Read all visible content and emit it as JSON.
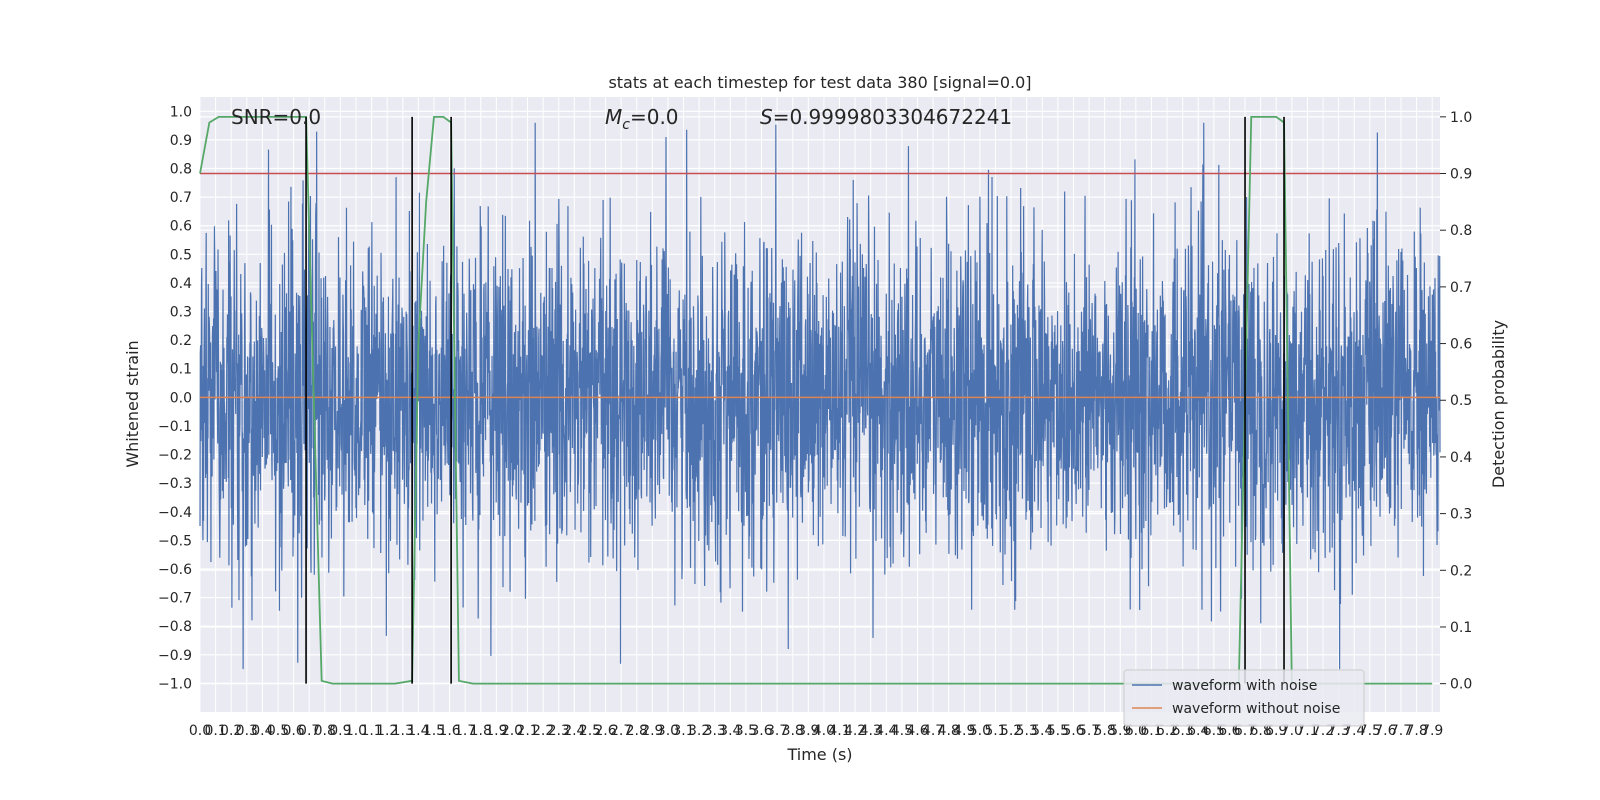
{
  "chart_data": {
    "type": "line",
    "title": "stats at each timestep for test data 380 [signal=0.0]",
    "xlabel": "Time (s)",
    "ylabel_left": "Whitened strain",
    "ylabel_right": "Detection probability",
    "xlim": [
      0.0,
      7.95
    ],
    "ylim_left": [
      -1.1,
      1.05
    ],
    "ylim_right": [
      -0.05,
      1.035
    ],
    "x_ticks": [
      "0.0",
      "0.1",
      "0.2",
      "0.3",
      "0.4",
      "0.5",
      "0.6",
      "0.7",
      "0.8",
      "0.9",
      "1.0",
      "1.1",
      "1.2",
      "1.3",
      "1.4",
      "1.5",
      "1.6",
      "1.7",
      "1.8",
      "1.9",
      "2.0",
      "2.1",
      "2.2",
      "2.3",
      "2.4",
      "2.5",
      "2.6",
      "2.7",
      "2.8",
      "2.9",
      "3.0",
      "3.1",
      "3.2",
      "3.3",
      "3.4",
      "3.5",
      "3.6",
      "3.7",
      "3.8",
      "3.9",
      "4.0",
      "4.1",
      "4.2",
      "4.3",
      "4.4",
      "4.5",
      "4.6",
      "4.7",
      "4.8",
      "4.9",
      "5.0",
      "5.1",
      "5.2",
      "5.3",
      "5.4",
      "5.5",
      "5.6",
      "5.7",
      "5.8",
      "5.9",
      "6.0",
      "6.1",
      "6.2",
      "6.3",
      "6.4",
      "6.5",
      "6.6",
      "6.7",
      "6.8",
      "6.9",
      "7.0",
      "7.1",
      "7.2",
      "7.3",
      "7.4",
      "7.5",
      "7.6",
      "7.7",
      "7.8",
      "7.9"
    ],
    "y_ticks_left": [
      "1.0",
      "0.9",
      "0.8",
      "0.7",
      "0.6",
      "0.5",
      "0.4",
      "0.3",
      "0.2",
      "0.1",
      "0.0",
      "−0.1",
      "−0.2",
      "−0.3",
      "−0.4",
      "−0.5",
      "−0.6",
      "−0.7",
      "−0.8",
      "−0.9",
      "−1.0"
    ],
    "y_ticks_right": [
      "1.0",
      "0.9",
      "0.8",
      "0.7",
      "0.6",
      "0.5",
      "0.4",
      "0.3",
      "0.2",
      "0.1",
      "0.0"
    ],
    "annotations": {
      "snr": "SNR=0.0",
      "mc_symbol": "M",
      "mc_sub": "c",
      "mc_value": "=0.0",
      "s_symbol": "S",
      "s_value": "=0.9999803304672241"
    },
    "threshold": 0.9,
    "vlines_x": [
      0.68,
      1.36,
      1.61,
      6.7,
      6.95
    ],
    "detection_probability": {
      "x": [
        0.0,
        0.06,
        0.12,
        0.2,
        0.3,
        0.4,
        0.5,
        0.6,
        0.68,
        0.72,
        0.78,
        0.85,
        0.95,
        1.1,
        1.25,
        1.36,
        1.4,
        1.45,
        1.5,
        1.56,
        1.61,
        1.66,
        1.75,
        2.0,
        3.0,
        4.0,
        5.0,
        6.0,
        6.66,
        6.7,
        6.74,
        6.8,
        6.9,
        6.95,
        7.0,
        7.3,
        7.6,
        7.9
      ],
      "y": [
        0.9,
        0.99,
        1.0,
        1.0,
        1.0,
        1.0,
        1.0,
        1.0,
        1.0,
        0.6,
        0.005,
        0.0,
        0.0,
        0.0,
        0.0,
        0.005,
        0.6,
        0.85,
        1.0,
        1.0,
        0.99,
        0.005,
        0.0,
        0.0,
        0.0,
        0.0,
        0.0,
        0.0,
        0.0,
        0.5,
        1.0,
        1.0,
        1.0,
        0.99,
        0.0,
        0.0,
        0.0,
        0.0
      ]
    },
    "series": [
      {
        "name": "waveform with noise",
        "color": "#4c72b0",
        "seed": 380,
        "amplitude": 0.28,
        "range": [
          -0.95,
          0.96
        ]
      },
      {
        "name": "waveform without noise",
        "color": "#dd8452",
        "value": 0.0
      }
    ],
    "colors": {
      "background": "#eaeaf2",
      "grid": "#ffffff",
      "probability": "#55a868",
      "threshold": "#c44e52",
      "vlines": "#000000"
    },
    "legend_position": "lower right"
  }
}
